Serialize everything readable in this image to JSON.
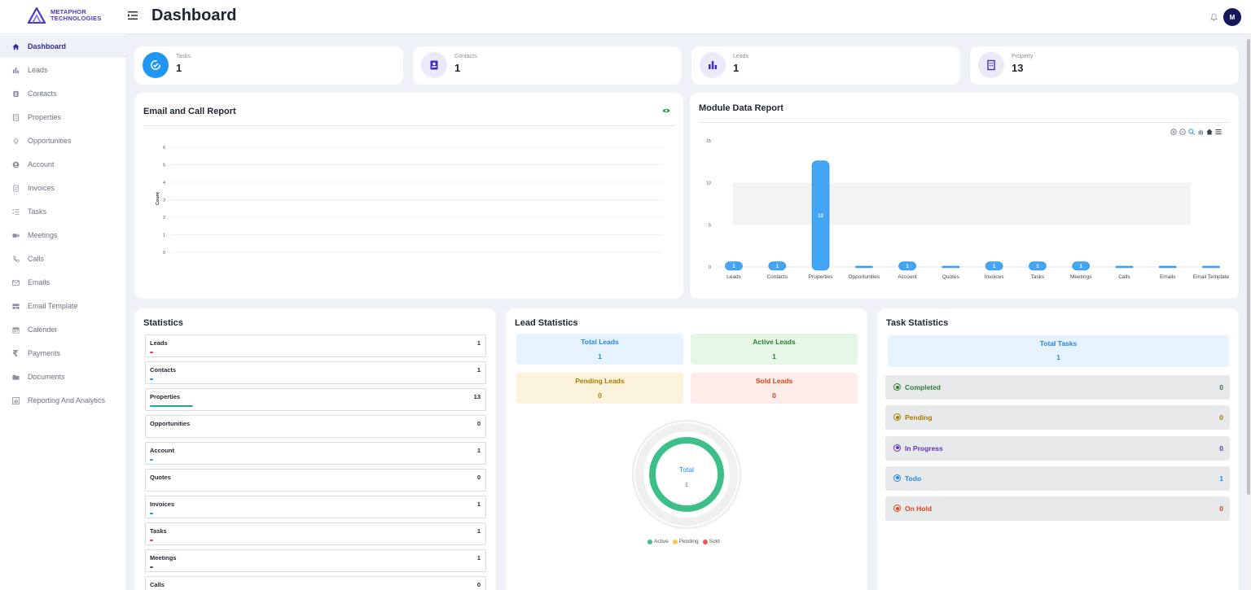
{
  "app": {
    "logo_line1": "METAPHOR",
    "logo_line2": "TECHNOLOGIES",
    "page_title": "Dashboard",
    "user_initial": "M"
  },
  "sidebar": {
    "items": [
      {
        "label": "Dashboard",
        "icon": "home-icon"
      },
      {
        "label": "Leads",
        "icon": "bar-chart-icon"
      },
      {
        "label": "Contacts",
        "icon": "contact-card-icon"
      },
      {
        "label": "Properties",
        "icon": "building-icon"
      },
      {
        "label": "Opportunities",
        "icon": "lightbulb-icon"
      },
      {
        "label": "Account",
        "icon": "user-circle-icon"
      },
      {
        "label": "Invoices",
        "icon": "invoice-icon"
      },
      {
        "label": "Tasks",
        "icon": "checklist-icon"
      },
      {
        "label": "Meetings",
        "icon": "video-icon"
      },
      {
        "label": "Calls",
        "icon": "phone-icon"
      },
      {
        "label": "Emails",
        "icon": "mail-icon"
      },
      {
        "label": "Email Template",
        "icon": "template-icon"
      },
      {
        "label": "Calender",
        "icon": "calendar-icon"
      },
      {
        "label": "Payments",
        "icon": "rupee-icon"
      },
      {
        "label": "Documents",
        "icon": "folder-icon"
      },
      {
        "label": "Reporting And Analytics",
        "icon": "analytics-icon"
      }
    ]
  },
  "stat_cards": [
    {
      "label": "Tasks",
      "value": "1",
      "icon": "task-check-icon",
      "color": "#2196f3"
    },
    {
      "label": "Contacts",
      "value": "1",
      "icon": "contact-card-icon",
      "color": "#3b2fc9"
    },
    {
      "label": "Leads",
      "value": "1",
      "icon": "bar-chart-icon",
      "color": "#3b2fc9"
    },
    {
      "label": "Property",
      "value": "13",
      "icon": "building-icon",
      "color": "#3b2fc9"
    }
  ],
  "email_call_report": {
    "title": "Email and Call Report",
    "y_axis_label": "Count",
    "y_ticks": [
      "0",
      "1",
      "2",
      "3",
      "4",
      "5",
      "6"
    ]
  },
  "module_report": {
    "title": "Module Data Report"
  },
  "chart_data": {
    "type": "bar",
    "title": "Module Data Report",
    "categories": [
      "Leads",
      "Contacts",
      "Properties",
      "Opportunities",
      "Account",
      "Quotes",
      "Invoices",
      "Tasks",
      "Meetings",
      "Calls",
      "Emails",
      "Email Template"
    ],
    "values": [
      1,
      1,
      13,
      0,
      1,
      0,
      1,
      1,
      1,
      0,
      0,
      0
    ],
    "ylim": [
      0,
      15
    ],
    "y_ticks": [
      "0",
      "5",
      "10",
      "15"
    ],
    "color": "#42a5f5"
  },
  "statistics": {
    "title": "Statistics",
    "rows": [
      {
        "name": "Leads",
        "value": "1",
        "color": "#e53935",
        "fill": 0.01
      },
      {
        "name": "Contacts",
        "value": "1",
        "color": "#1e88e5",
        "fill": 0.01
      },
      {
        "name": "Properties",
        "value": "13",
        "color": "#26a69a",
        "fill": 0.13
      },
      {
        "name": "Opportunities",
        "value": "0",
        "color": "#26a69a",
        "fill": 0
      },
      {
        "name": "Account",
        "value": "1",
        "color": "#26a69a",
        "fill": 0.01
      },
      {
        "name": "Quotes",
        "value": "0",
        "color": "#26a69a",
        "fill": 0
      },
      {
        "name": "Invoices",
        "value": "1",
        "color": "#1e88e5",
        "fill": 0.01
      },
      {
        "name": "Tasks",
        "value": "1",
        "color": "#e53935",
        "fill": 0.01
      },
      {
        "name": "Meetings",
        "value": "1",
        "color": "#555555",
        "fill": 0.01
      },
      {
        "name": "Calls",
        "value": "0",
        "color": "#555555",
        "fill": 0
      }
    ]
  },
  "lead_statistics": {
    "title": "Lead Statistics",
    "boxes": [
      {
        "label": "Total Leads",
        "value": "1",
        "bg": "#e6f2fd",
        "color": "#1e88e5"
      },
      {
        "label": "Active Leads",
        "value": "1",
        "bg": "#e5f6e6",
        "color": "#2e7d32"
      },
      {
        "label": "Pending Leads",
        "value": "0",
        "bg": "#fbf3dc",
        "color": "#a67c00"
      },
      {
        "label": "Sold Leads",
        "value": "0",
        "bg": "#fdece9",
        "color": "#d84315"
      }
    ],
    "donut_label": "Total",
    "donut_value": "1",
    "legend": [
      {
        "name": "Active",
        "color": "#3dbf8a"
      },
      {
        "name": "Pending",
        "color": "#f2c94c"
      },
      {
        "name": "Sold",
        "color": "#eb5757"
      }
    ]
  },
  "task_statistics": {
    "title": "Task Statistics",
    "total_label": "Total Tasks",
    "total_value": "1",
    "rows": [
      {
        "name": "Completed",
        "value": "0",
        "color": "#2e7d32"
      },
      {
        "name": "Pending",
        "value": "0",
        "color": "#a67c00"
      },
      {
        "name": "In Progress",
        "value": "0",
        "color": "#5e35b1"
      },
      {
        "name": "Todo",
        "value": "1",
        "color": "#1e88e5"
      },
      {
        "name": "On Hold",
        "value": "0",
        "color": "#d84315"
      }
    ]
  }
}
